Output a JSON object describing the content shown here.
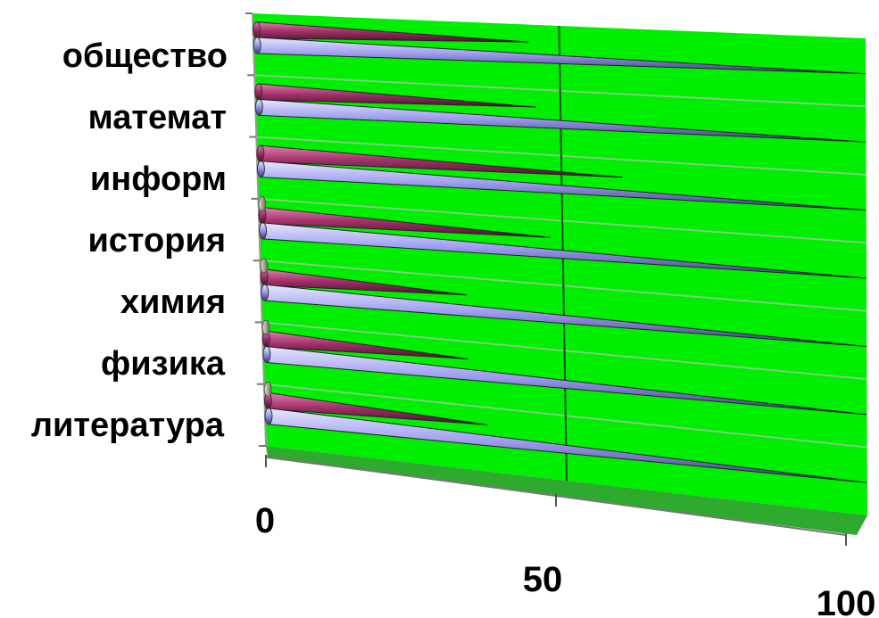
{
  "chart_data": {
    "type": "bar",
    "orientation": "horizontal",
    "style": "3d-cone",
    "categories": [
      "общество",
      "математ",
      "информ",
      "история",
      "химия",
      "физика",
      "литература"
    ],
    "series": [
      {
        "values": [
          45,
          46,
          60,
          48,
          34,
          34,
          37
        ]
      },
      {
        "values": [
          100,
          100,
          100,
          100,
          100,
          100,
          100
        ]
      },
      {
        "values": [
          0,
          0,
          0,
          1,
          1,
          1,
          1
        ]
      }
    ],
    "x_ticks": [
      "0",
      "50",
      "100"
    ],
    "xlim": [
      0,
      100
    ],
    "grid": true,
    "legend": "none",
    "colors": {
      "wall": "#00ee00",
      "floor": "#2eaa2e",
      "series_1": "#a3336a",
      "series_2": "#9c9cf0",
      "series_3": "#b8b8a0"
    }
  }
}
